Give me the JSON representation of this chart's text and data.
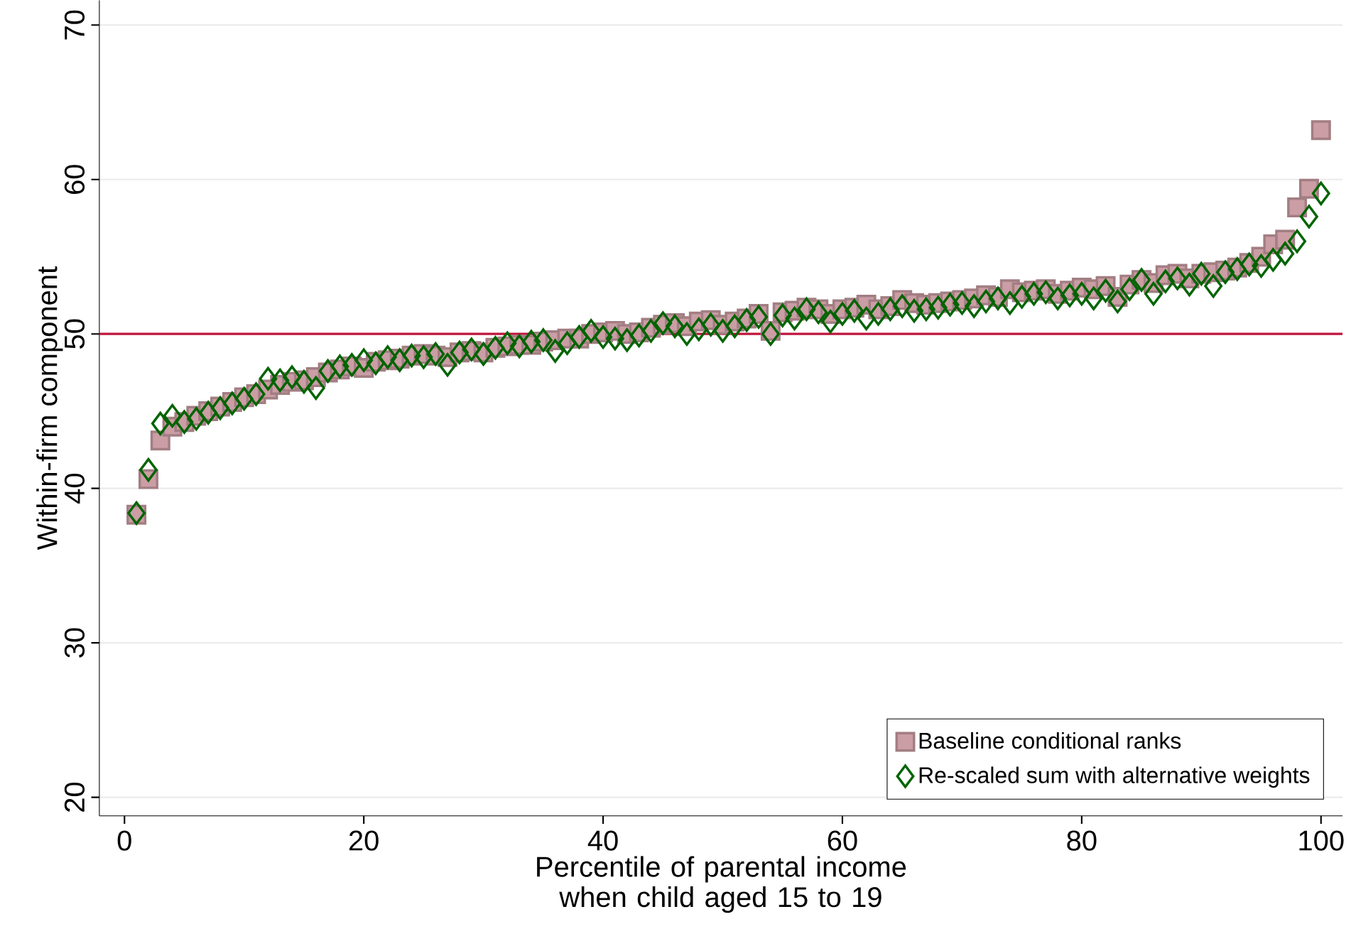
{
  "chart_data": {
    "type": "scatter",
    "xlabel": "Percentile of parental income when child aged 15 to 19",
    "ylabel": "Within-firm component",
    "x": [
      1,
      2,
      3,
      4,
      5,
      6,
      7,
      8,
      9,
      10,
      11,
      12,
      13,
      14,
      15,
      16,
      17,
      18,
      19,
      20,
      21,
      22,
      23,
      24,
      25,
      26,
      27,
      28,
      29,
      30,
      31,
      32,
      33,
      34,
      35,
      36,
      37,
      38,
      39,
      40,
      41,
      42,
      43,
      44,
      45,
      46,
      47,
      48,
      49,
      50,
      51,
      52,
      53,
      54,
      55,
      56,
      57,
      58,
      59,
      60,
      61,
      62,
      63,
      64,
      65,
      66,
      67,
      68,
      69,
      70,
      71,
      72,
      73,
      74,
      75,
      76,
      77,
      78,
      79,
      80,
      81,
      82,
      83,
      84,
      85,
      86,
      87,
      88,
      89,
      90,
      91,
      92,
      93,
      94,
      95,
      96,
      97,
      98,
      99,
      100
    ],
    "series": [
      {
        "name": "Baseline conditional ranks",
        "color": "#cb9da4",
        "marker": "square",
        "values": [
          38.3,
          40.6,
          43.1,
          44.0,
          44.3,
          44.7,
          45.0,
          45.3,
          45.6,
          45.9,
          46.1,
          46.4,
          46.7,
          46.9,
          47.0,
          47.2,
          47.5,
          47.7,
          47.9,
          47.8,
          48.2,
          48.3,
          48.4,
          48.6,
          48.7,
          48.6,
          48.5,
          48.8,
          48.9,
          48.8,
          49.1,
          49.2,
          49.3,
          49.3,
          49.5,
          49.6,
          49.7,
          49.7,
          50.0,
          50.1,
          50.2,
          50.0,
          50.1,
          50.4,
          50.6,
          50.7,
          50.5,
          50.8,
          50.9,
          50.6,
          50.8,
          51.0,
          51.3,
          50.2,
          51.4,
          51.5,
          51.7,
          51.6,
          51.3,
          51.6,
          51.7,
          51.9,
          51.6,
          51.8,
          52.2,
          52.0,
          51.9,
          52.0,
          52.1,
          52.2,
          52.3,
          52.5,
          52.4,
          52.9,
          52.7,
          52.8,
          52.9,
          52.6,
          52.8,
          53.0,
          52.9,
          53.1,
          52.4,
          53.2,
          53.5,
          53.3,
          53.8,
          53.9,
          53.6,
          53.9,
          54.0,
          54.1,
          54.3,
          54.6,
          55.0,
          55.8,
          56.1,
          58.2,
          59.4,
          63.2
        ]
      },
      {
        "name": "Re-scaled sum with alternative weights",
        "color": "#006400",
        "marker": "diamond",
        "values": [
          38.4,
          41.2,
          44.2,
          44.7,
          44.3,
          44.5,
          44.9,
          45.2,
          45.5,
          45.8,
          46.1,
          47.1,
          47.0,
          47.2,
          46.9,
          46.5,
          47.6,
          47.9,
          48.0,
          48.3,
          48.1,
          48.5,
          48.3,
          48.6,
          48.5,
          48.7,
          48.0,
          48.8,
          49.0,
          48.7,
          49.1,
          49.4,
          49.2,
          49.5,
          49.6,
          48.9,
          49.4,
          49.8,
          50.2,
          49.8,
          49.7,
          49.6,
          49.9,
          50.2,
          50.7,
          50.5,
          50.0,
          50.3,
          50.6,
          50.2,
          50.5,
          50.9,
          51.1,
          50.0,
          51.2,
          51.0,
          51.6,
          51.4,
          50.8,
          51.3,
          51.5,
          51.0,
          51.3,
          51.6,
          51.8,
          51.5,
          51.6,
          51.7,
          51.9,
          52.0,
          51.8,
          52.1,
          52.3,
          52.0,
          52.4,
          52.6,
          52.7,
          52.3,
          52.5,
          52.6,
          52.3,
          52.8,
          52.1,
          52.9,
          53.5,
          52.6,
          53.4,
          53.6,
          53.2,
          53.9,
          53.1,
          54.0,
          54.2,
          54.5,
          54.4,
          54.8,
          55.2,
          56.0,
          57.6,
          59.1
        ]
      }
    ],
    "xlim": [
      -2.1,
      101.8
    ],
    "ylim": [
      18.8,
      71.6
    ],
    "xticks": [
      0,
      20,
      40,
      60,
      80,
      100
    ],
    "yticks": [
      20,
      30,
      40,
      50,
      60,
      70
    ],
    "ref_lines": [
      {
        "axis": "y",
        "value": 50,
        "color": "#c0143c"
      }
    ],
    "grid": "y",
    "legend": "bottom right"
  }
}
